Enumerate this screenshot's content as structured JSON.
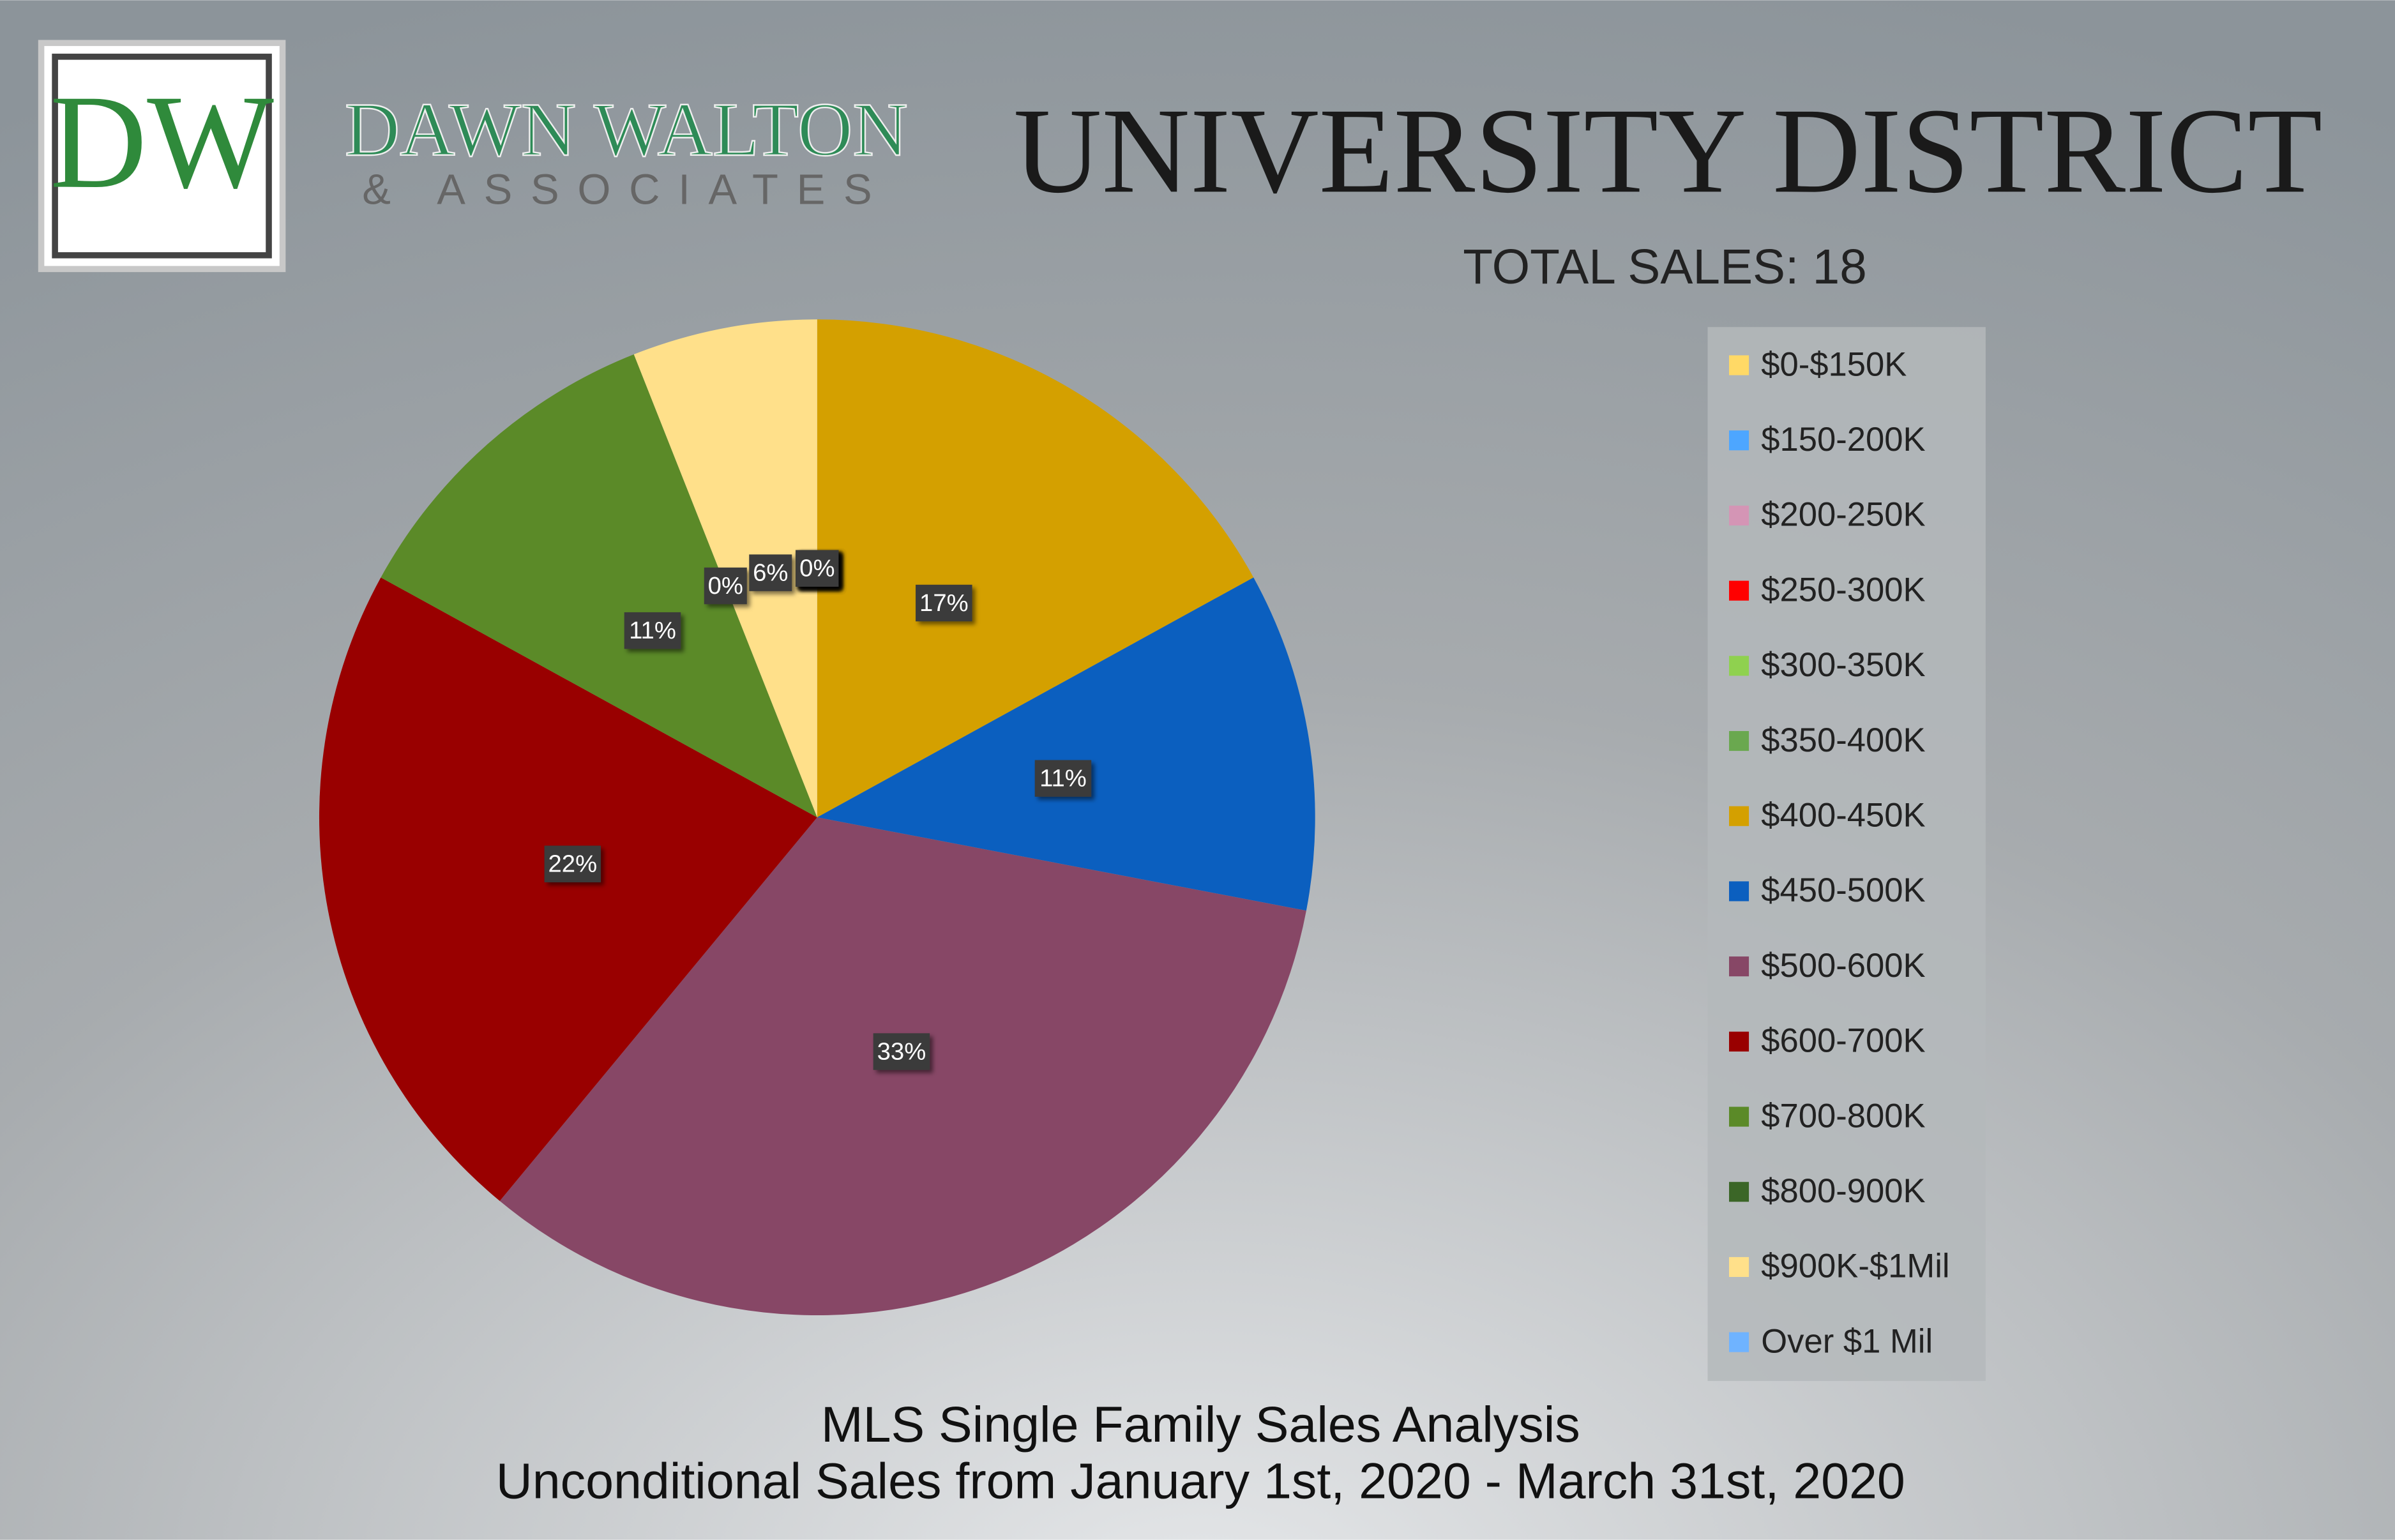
{
  "logo": {
    "initials": "DW",
    "name": "DAWN WALTON",
    "tagline": "& ASSOCIATES"
  },
  "chart_data": {
    "type": "pie",
    "title": "UNIVERSITY DISTRICT",
    "subtitle": "TOTAL SALES: 18",
    "footer": [
      "MLS Single Family Sales Analysis",
      "Unconditional Sales from January 1st, 2020 - March 31st, 2020"
    ],
    "categories": [
      "$0-$150K",
      "$150-200K",
      "$200-250K",
      "$250-300K",
      "$300-350K",
      "$350-400K",
      "$400-450K",
      "$450-500K",
      "$500-600K",
      "$600-700K",
      "$700-800K",
      "$800-900K",
      "$900K-$1Mil",
      "Over $1 Mil"
    ],
    "values": [
      0,
      0,
      0,
      0,
      0,
      0,
      17,
      11,
      33,
      22,
      11,
      0,
      6,
      0
    ],
    "value_labels": [
      "0%",
      "0%",
      "0%",
      "0%",
      "0%",
      "0%",
      "17%",
      "11%",
      "33%",
      "22%",
      "11%",
      "0%",
      "6%",
      "0%"
    ],
    "colors": [
      "#ffd966",
      "#4da6ff",
      "#d495b5",
      "#ff0000",
      "#8fd14f",
      "#6aa84f",
      "#d4a000",
      "#0b5fbf",
      "#874766",
      "#990000",
      "#5b8a28",
      "#3b6627",
      "#ffe08a",
      "#6fb3ff"
    ],
    "legend": "right"
  }
}
